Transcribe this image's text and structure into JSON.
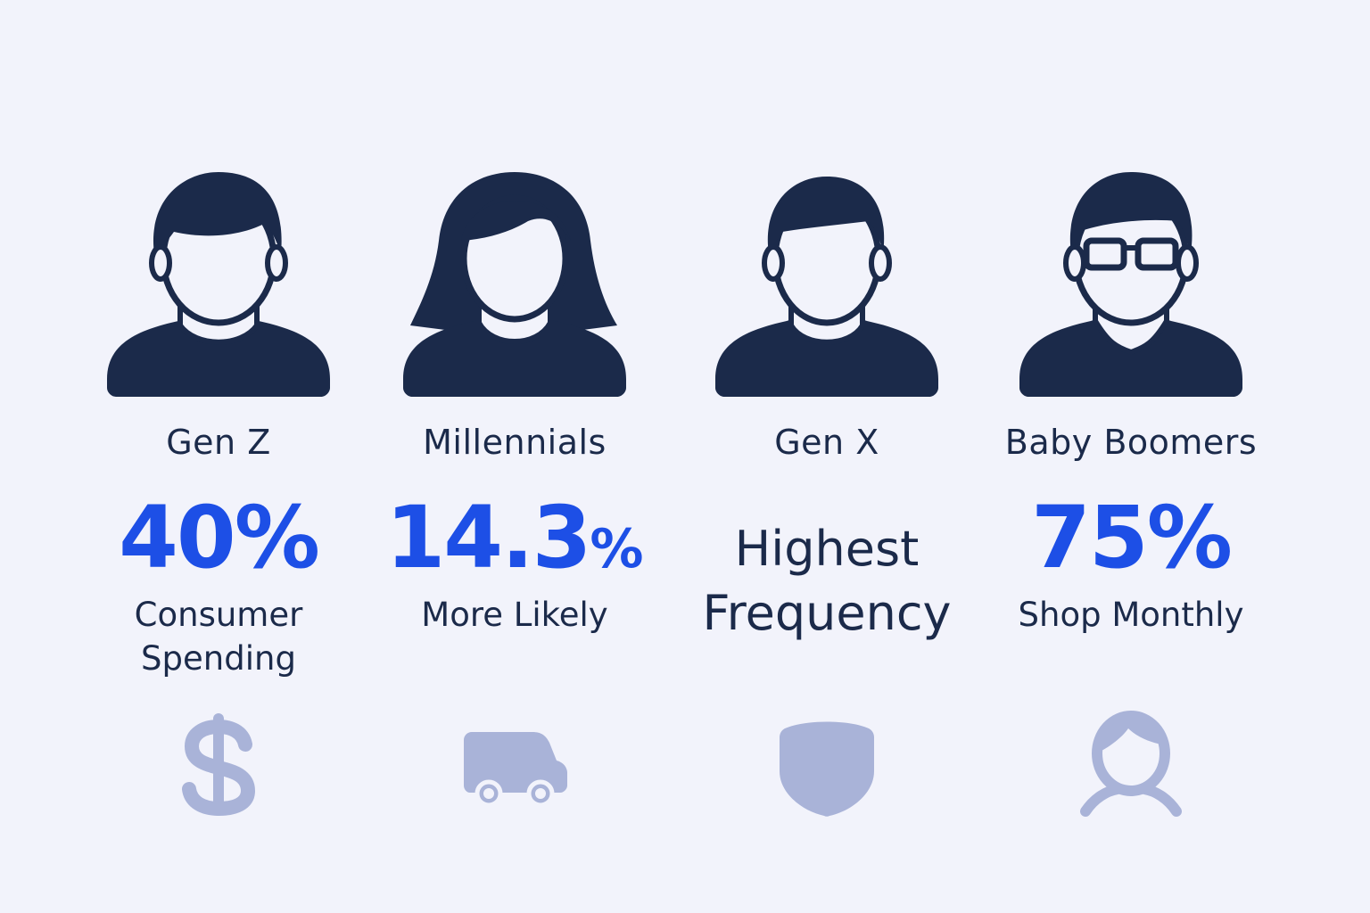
{
  "colors": {
    "background": "#f2f3fb",
    "figure": "#1b2a4a",
    "accent": "#1d4fe6",
    "muted_icon": "#a9b3d8"
  },
  "generations": [
    {
      "label": "Gen Z",
      "stat": "40%",
      "description_line1": "Consumer",
      "description_line2": "Spending",
      "icon": "dollar-sign-icon"
    },
    {
      "label": "Millennials",
      "stat_number": "14.3",
      "stat_unit": "%",
      "description_line1": "More Likely",
      "icon": "delivery-truck-icon"
    },
    {
      "label": "Gen X",
      "description_line1": "Highest",
      "description_line2": "Frequency",
      "icon": "shield-icon"
    },
    {
      "label": "Baby Boomers",
      "stat": "75%",
      "description_line1": "Shop Monthly",
      "icon": "user-outline-icon"
    }
  ]
}
